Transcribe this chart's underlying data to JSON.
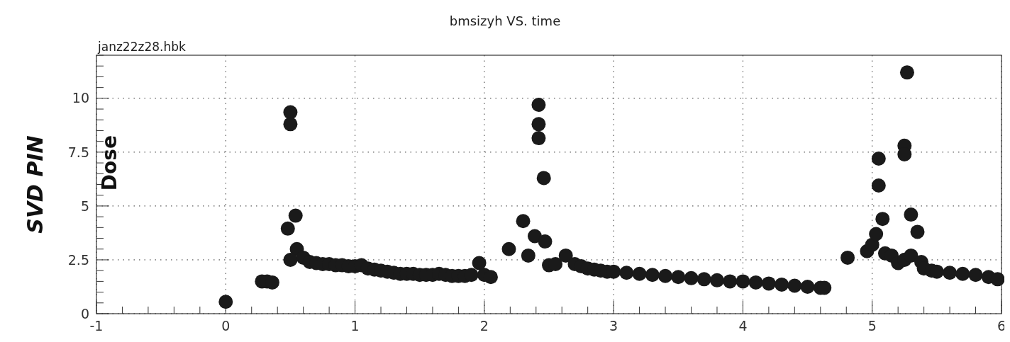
{
  "chart_data": {
    "type": "scatter",
    "title": "bmsizyh VS. time",
    "ylabel": "SVD PIN",
    "annotations": [
      "janz22z28.hbk",
      "Dose"
    ],
    "xlim": [
      -1,
      6
    ],
    "ylim": [
      0,
      12
    ],
    "xticks": [
      -1,
      {
        "value": -0.8,
        "label": null
      },
      {
        "value": -0.6,
        "label": null
      },
      {
        "value": -0.4,
        "label": null
      },
      {
        "value": -0.2,
        "label": null
      },
      0,
      {
        "value": 0.2,
        "label": null
      },
      {
        "value": 0.4,
        "label": null
      },
      {
        "value": 0.6,
        "label": null
      },
      {
        "value": 0.8,
        "label": null
      },
      1,
      {
        "value": 1.2,
        "label": null
      },
      {
        "value": 1.4,
        "label": null
      },
      {
        "value": 1.6,
        "label": null
      },
      {
        "value": 1.8,
        "label": null
      },
      2,
      {
        "value": 2.2,
        "label": null
      },
      {
        "value": 2.4,
        "label": null
      },
      {
        "value": 2.6,
        "label": null
      },
      {
        "value": 2.8,
        "label": null
      },
      3,
      {
        "value": 3.2,
        "label": null
      },
      {
        "value": 3.4,
        "label": null
      },
      {
        "value": 3.6,
        "label": null
      },
      {
        "value": 3.8,
        "label": null
      },
      4,
      {
        "value": 4.2,
        "label": null
      },
      {
        "value": 4.4,
        "label": null
      },
      {
        "value": 4.6,
        "label": null
      },
      {
        "value": 4.8,
        "label": null
      },
      5,
      {
        "value": 5.2,
        "label": null
      },
      {
        "value": 5.4,
        "label": null
      },
      {
        "value": 5.6,
        "label": null
      },
      {
        "value": 5.8,
        "label": null
      },
      6
    ],
    "yticks": [
      0,
      {
        "value": 0.5,
        "label": null
      },
      {
        "value": 1,
        "label": null
      },
      {
        "value": 1.5,
        "label": null
      },
      {
        "value": 2,
        "label": null
      },
      2.5,
      {
        "value": 3,
        "label": null
      },
      {
        "value": 3.5,
        "label": null
      },
      {
        "value": 4,
        "label": null
      },
      {
        "value": 4.5,
        "label": null
      },
      5,
      {
        "value": 5.5,
        "label": null
      },
      {
        "value": 6,
        "label": null
      },
      {
        "value": 6.5,
        "label": null
      },
      {
        "value": 7,
        "label": null
      },
      7.5,
      {
        "value": 8,
        "label": null
      },
      {
        "value": 8.5,
        "label": null
      },
      {
        "value": 9,
        "label": null
      },
      {
        "value": 9.5,
        "label": null
      },
      10,
      {
        "value": 10.5,
        "label": null
      },
      {
        "value": 11,
        "label": null
      },
      {
        "value": 11.5,
        "label": null
      },
      {
        "value": 12,
        "label": null
      }
    ],
    "grid": true,
    "marker": "circle",
    "series": [
      {
        "color": "#1a1a1a",
        "x": [
          0,
          0.28,
          0.32,
          0.36,
          0.5,
          0.5,
          0.54,
          0.48,
          0.55,
          0.5,
          0.6,
          0.65,
          0.7,
          0.75,
          0.8,
          0.85,
          0.9,
          0.95,
          1.0,
          1.05,
          1.1,
          1.15,
          1.2,
          1.25,
          1.3,
          1.35,
          1.4,
          1.45,
          1.5,
          1.55,
          1.6,
          1.65,
          1.7,
          1.75,
          1.8,
          1.85,
          1.9,
          1.96,
          2.0,
          2.05,
          2.19,
          2.3,
          2.34,
          2.39,
          2.47,
          2.42,
          2.42,
          2.42,
          2.46,
          2.5,
          2.55,
          2.63,
          2.7,
          2.75,
          2.8,
          2.85,
          2.9,
          2.95,
          3.0,
          3.1,
          3.2,
          3.3,
          3.4,
          3.5,
          3.6,
          3.7,
          3.8,
          3.9,
          4.0,
          4.1,
          4.2,
          4.3,
          4.4,
          4.5,
          4.6,
          4.63,
          4.81,
          4.96,
          5.0,
          5.03,
          5.08,
          5.05,
          5.05,
          5.1,
          5.15,
          5.2,
          5.25,
          5.25,
          5.25,
          5.27,
          5.3,
          5.3,
          5.35,
          5.38,
          5.4,
          5.46,
          5.5,
          5.6,
          5.7,
          5.8,
          5.9,
          5.97
        ],
        "values": [
          0.55,
          1.5,
          1.5,
          1.45,
          9.35,
          8.8,
          4.55,
          3.95,
          3.0,
          2.5,
          2.6,
          2.4,
          2.35,
          2.3,
          2.3,
          2.25,
          2.25,
          2.2,
          2.2,
          2.25,
          2.1,
          2.05,
          2.0,
          1.95,
          1.9,
          1.85,
          1.85,
          1.85,
          1.8,
          1.8,
          1.8,
          1.85,
          1.8,
          1.75,
          1.75,
          1.75,
          1.8,
          2.35,
          1.8,
          1.7,
          3.0,
          4.3,
          2.7,
          3.6,
          3.35,
          9.7,
          8.8,
          8.15,
          6.3,
          2.25,
          2.3,
          2.7,
          2.3,
          2.2,
          2.1,
          2.05,
          2.0,
          1.95,
          1.95,
          1.9,
          1.85,
          1.8,
          1.75,
          1.7,
          1.65,
          1.6,
          1.55,
          1.5,
          1.5,
          1.45,
          1.4,
          1.35,
          1.3,
          1.25,
          1.2,
          1.2,
          2.6,
          2.9,
          3.2,
          3.7,
          4.4,
          7.2,
          5.95,
          2.8,
          2.7,
          2.35,
          2.5,
          7.8,
          7.4,
          11.2,
          4.6,
          2.7,
          3.8,
          2.4,
          2.1,
          2.0,
          1.95,
          1.9,
          1.85,
          1.8,
          1.7,
          1.6
        ]
      }
    ]
  }
}
